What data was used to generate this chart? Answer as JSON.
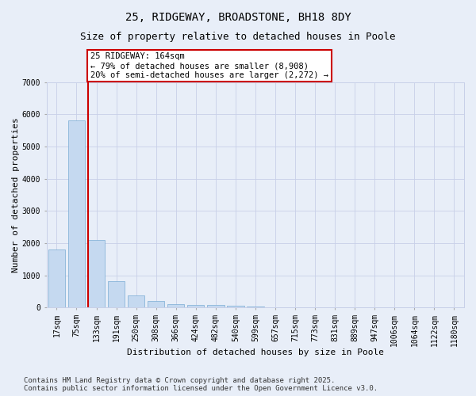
{
  "title_line1": "25, RIDGEWAY, BROADSTONE, BH18 8DY",
  "title_line2": "Size of property relative to detached houses in Poole",
  "xlabel": "Distribution of detached houses by size in Poole",
  "ylabel": "Number of detached properties",
  "categories": [
    "17sqm",
    "75sqm",
    "133sqm",
    "191sqm",
    "250sqm",
    "308sqm",
    "366sqm",
    "424sqm",
    "482sqm",
    "540sqm",
    "599sqm",
    "657sqm",
    "715sqm",
    "773sqm",
    "831sqm",
    "889sqm",
    "947sqm",
    "1006sqm",
    "1064sqm",
    "1122sqm",
    "1180sqm"
  ],
  "values": [
    1800,
    5820,
    2100,
    820,
    370,
    215,
    120,
    95,
    80,
    55,
    42,
    20,
    10,
    5,
    3,
    2,
    1,
    1,
    0,
    0,
    0
  ],
  "bar_color": "#c5d9f0",
  "bar_edge_color": "#7aacd4",
  "vline_x": 2,
  "vline_color": "#cc0000",
  "annotation_text": "25 RIDGEWAY: 164sqm\n← 79% of detached houses are smaller (8,908)\n20% of semi-detached houses are larger (2,272) →",
  "annotation_box_color": "#ffffff",
  "annotation_box_edge": "#cc0000",
  "ylim": [
    0,
    7000
  ],
  "yticks": [
    0,
    1000,
    2000,
    3000,
    4000,
    5000,
    6000,
    7000
  ],
  "bg_color": "#e8eef8",
  "grid_color": "#c8d0e8",
  "footer_line1": "Contains HM Land Registry data © Crown copyright and database right 2025.",
  "footer_line2": "Contains public sector information licensed under the Open Government Licence v3.0.",
  "title_fontsize": 10,
  "subtitle_fontsize": 9,
  "axis_label_fontsize": 8,
  "tick_fontsize": 7,
  "annotation_fontsize": 7.5,
  "footer_fontsize": 6.5
}
